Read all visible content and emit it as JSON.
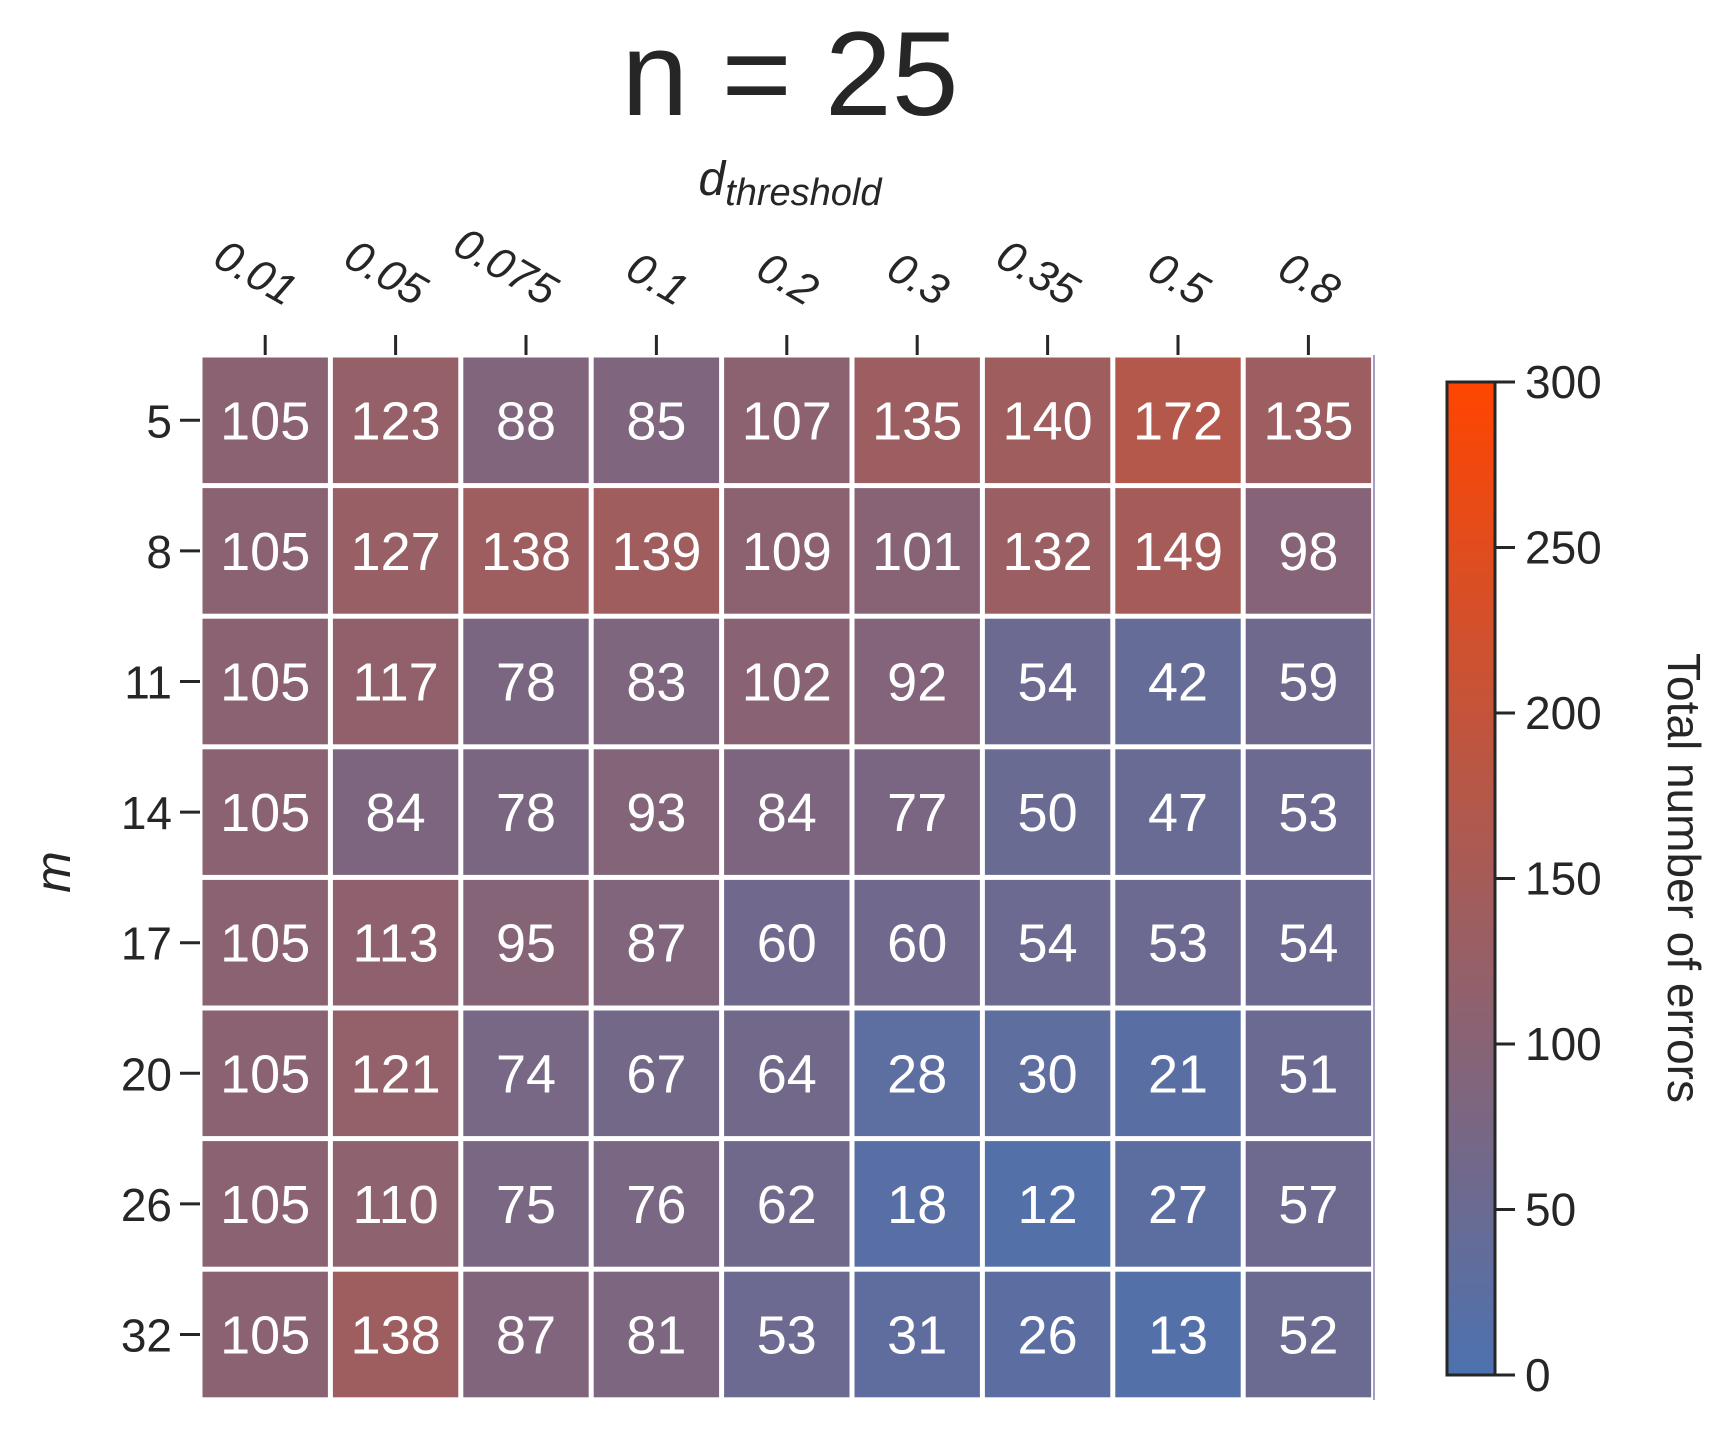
{
  "chart_data": {
    "type": "heatmap",
    "title": "n = 25",
    "xlabel": "d",
    "xlabel_subscript": "threshold",
    "ylabel": "m",
    "x": [
      "0.01",
      "0.05",
      "0.075",
      "0.1",
      "0.2",
      "0.3",
      "0.35",
      "0.5",
      "0.8"
    ],
    "y": [
      "5",
      "8",
      "11",
      "14",
      "17",
      "20",
      "26",
      "32"
    ],
    "values": [
      [
        105,
        123,
        88,
        85,
        107,
        135,
        140,
        172,
        135
      ],
      [
        105,
        127,
        138,
        139,
        109,
        101,
        132,
        149,
        98
      ],
      [
        105,
        117,
        78,
        83,
        102,
        92,
        54,
        42,
        59
      ],
      [
        105,
        84,
        78,
        93,
        84,
        77,
        50,
        47,
        53
      ],
      [
        105,
        113,
        95,
        87,
        60,
        60,
        54,
        53,
        54
      ],
      [
        105,
        121,
        74,
        67,
        64,
        28,
        30,
        21,
        51
      ],
      [
        105,
        110,
        75,
        76,
        62,
        18,
        12,
        27,
        57
      ],
      [
        105,
        138,
        87,
        81,
        53,
        31,
        26,
        13,
        52
      ]
    ],
    "colorbar": {
      "label": "Total number of errors",
      "vmin": 0,
      "vmax": 300,
      "ticks": [
        "0",
        "50",
        "100",
        "150",
        "200",
        "250",
        "300"
      ],
      "color_low": "#4c72b0",
      "color_high": "#ff4500"
    },
    "annotations": true,
    "annotation_color": "#ffffff",
    "x_axis_position": "top",
    "grid": false,
    "legend": "colorbar-right"
  }
}
